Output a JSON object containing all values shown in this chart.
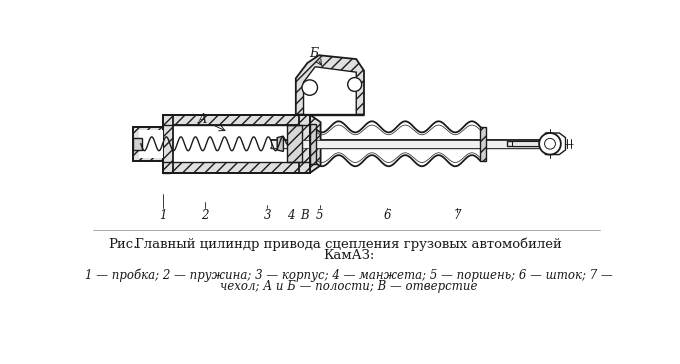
{
  "bg_color": "#ffffff",
  "line_color": "#1a1a1a",
  "hatch_color": "#1a1a1a",
  "title_line1": "Главный цилиндр привода сцепления грузовых автомобилей",
  "title_line2": "КамАЗ:",
  "caption_prefix": "Рис.",
  "caption_body": "1 — пробка; 2 — пружина; 3 — корпус; 4 — манжета; 5 — поршень; 6 — шток; 7 —",
  "caption_body2": "чехол; А и Б — полости; В — отверстие",
  "label_A": "А",
  "label_B_top": "Б",
  "fig_width": 6.8,
  "fig_height": 3.64,
  "dpi": 100
}
